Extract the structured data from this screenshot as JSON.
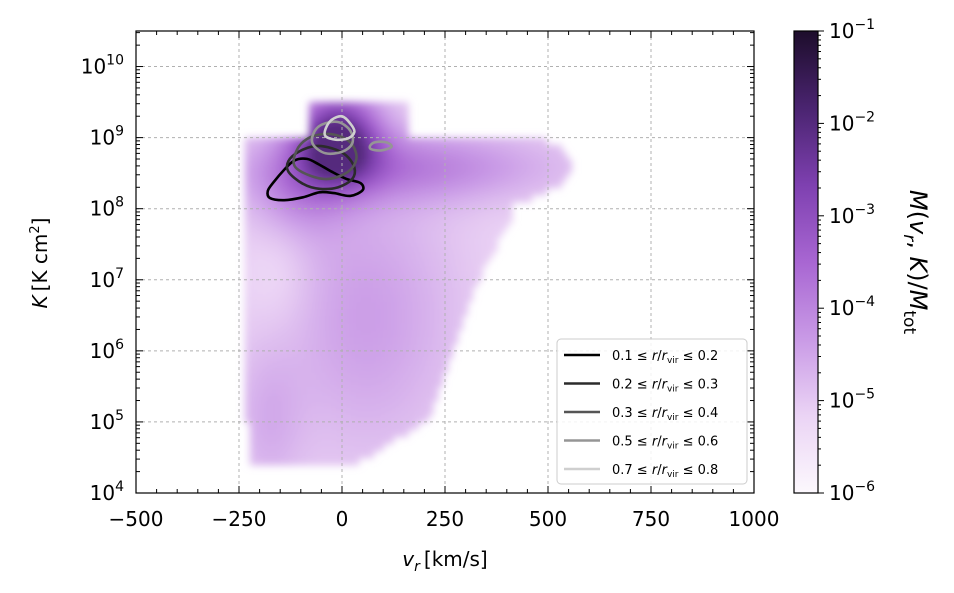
{
  "chart_data": {
    "type": "heatmap",
    "title": "",
    "xlabel": {
      "base": "v",
      "sub": "r",
      "unit": "[km/s]"
    },
    "ylabel": {
      "base": "K",
      "unit_open": "[K cm",
      "unit_sup": "2",
      "unit_close": "]"
    },
    "xlim": [
      -500,
      1000
    ],
    "xticks": [
      -500,
      -250,
      0,
      250,
      500,
      750,
      1000
    ],
    "xtick_labels": [
      "−500",
      "−250",
      "0",
      "250",
      "500",
      "750",
      "1000"
    ],
    "ylim_log10": [
      4,
      10.5
    ],
    "y_scale": "log",
    "yticks_log10": [
      4,
      5,
      6,
      7,
      8,
      9,
      10
    ],
    "ytick_base": "10",
    "ytick_exponents": [
      "4",
      "5",
      "6",
      "7",
      "8",
      "9",
      "10"
    ],
    "grid": true,
    "colorbar": {
      "label": "M(v_r, K)/M_tot",
      "scale": "log",
      "range_log10": [
        -6,
        -1
      ],
      "ticks_log10": [
        -6,
        -5,
        -4,
        -3,
        -2,
        -1
      ],
      "tick_base": "10",
      "tick_exponents": [
        "−6",
        "−5",
        "−4",
        "−3",
        "−2",
        "−1"
      ],
      "colormap": [
        "#fcf8fd",
        "#ebd4f5",
        "#c99ae6",
        "#a866d2",
        "#7e40b0",
        "#4a2470",
        "#1d0d2b"
      ]
    },
    "heatmap_region": {
      "description_values": "mass-weighted distribution in (v_r, log10 K)",
      "vr_range": [
        -240,
        560
      ],
      "log10K_range": [
        4.4,
        9.45
      ],
      "peak_log10_fraction": -2.0,
      "peak_at": {
        "vr": -10,
        "log10K": 9.0
      }
    },
    "legend": {
      "placement": "lower-right",
      "entries": [
        {
          "label_left": "0.1 ≤ ",
          "label_right": " ≤ 0.2",
          "color": "#000000"
        },
        {
          "label_left": "0.2 ≤ ",
          "label_right": " ≤ 0.3",
          "color": "#2b2b2b"
        },
        {
          "label_left": "0.3 ≤ ",
          "label_right": " ≤ 0.4",
          "color": "#555555"
        },
        {
          "label_left": "0.5 ≤ ",
          "label_right": " ≤ 0.6",
          "color": "#959595"
        },
        {
          "label_left": "0.7 ≤ ",
          "label_right": " ≤ 0.8",
          "color": "#cfcfcf"
        }
      ],
      "label_middle": {
        "r": "r",
        "slash": "/",
        "rvir": "r",
        "vir": "vir"
      }
    },
    "series": [
      {
        "color": "#000000",
        "points": [
          [
            -175,
            8.15
          ],
          [
            -140,
            8.12
          ],
          [
            -95,
            8.16
          ],
          [
            -55,
            8.23
          ],
          [
            -20,
            8.22
          ],
          [
            20,
            8.18
          ],
          [
            50,
            8.26
          ],
          [
            45,
            8.36
          ],
          [
            10,
            8.42
          ],
          [
            -25,
            8.52
          ],
          [
            -55,
            8.62
          ],
          [
            -85,
            8.7
          ],
          [
            -115,
            8.68
          ],
          [
            -140,
            8.55
          ],
          [
            -165,
            8.38
          ],
          [
            -180,
            8.25
          ]
        ]
      },
      {
        "color": "#2b2b2b",
        "points": [
          [
            -130,
            8.52
          ],
          [
            -95,
            8.35
          ],
          [
            -55,
            8.28
          ],
          [
            -10,
            8.3
          ],
          [
            25,
            8.42
          ],
          [
            30,
            8.58
          ],
          [
            10,
            8.75
          ],
          [
            -25,
            8.85
          ],
          [
            -65,
            8.88
          ],
          [
            -105,
            8.8
          ],
          [
            -130,
            8.67
          ]
        ]
      },
      {
        "color": "#555555",
        "points": [
          [
            -115,
            8.6
          ],
          [
            -75,
            8.46
          ],
          [
            -30,
            8.42
          ],
          [
            15,
            8.52
          ],
          [
            35,
            8.7
          ],
          [
            25,
            8.9
          ],
          [
            -5,
            9.02
          ],
          [
            -45,
            9.05
          ],
          [
            -85,
            8.98
          ],
          [
            -110,
            8.82
          ]
        ]
      },
      {
        "color": "#959595",
        "points": [
          [
            -70,
            8.9
          ],
          [
            -40,
            8.78
          ],
          [
            0,
            8.8
          ],
          [
            25,
            8.92
          ],
          [
            20,
            9.1
          ],
          [
            -10,
            9.22
          ],
          [
            -50,
            9.18
          ],
          [
            -70,
            9.05
          ]
        ]
      },
      {
        "color": "#959595",
        "points": [
          [
            70,
            8.84
          ],
          [
            95,
            8.82
          ],
          [
            120,
            8.87
          ],
          [
            110,
            8.93
          ],
          [
            85,
            8.94
          ],
          [
            70,
            8.9
          ]
        ]
      },
      {
        "color": "#cfcfcf",
        "points": [
          [
            -40,
            9.02
          ],
          [
            -15,
            8.97
          ],
          [
            15,
            8.99
          ],
          [
            30,
            9.08
          ],
          [
            20,
            9.2
          ],
          [
            0,
            9.3
          ],
          [
            -25,
            9.25
          ],
          [
            -40,
            9.12
          ]
        ]
      }
    ]
  }
}
